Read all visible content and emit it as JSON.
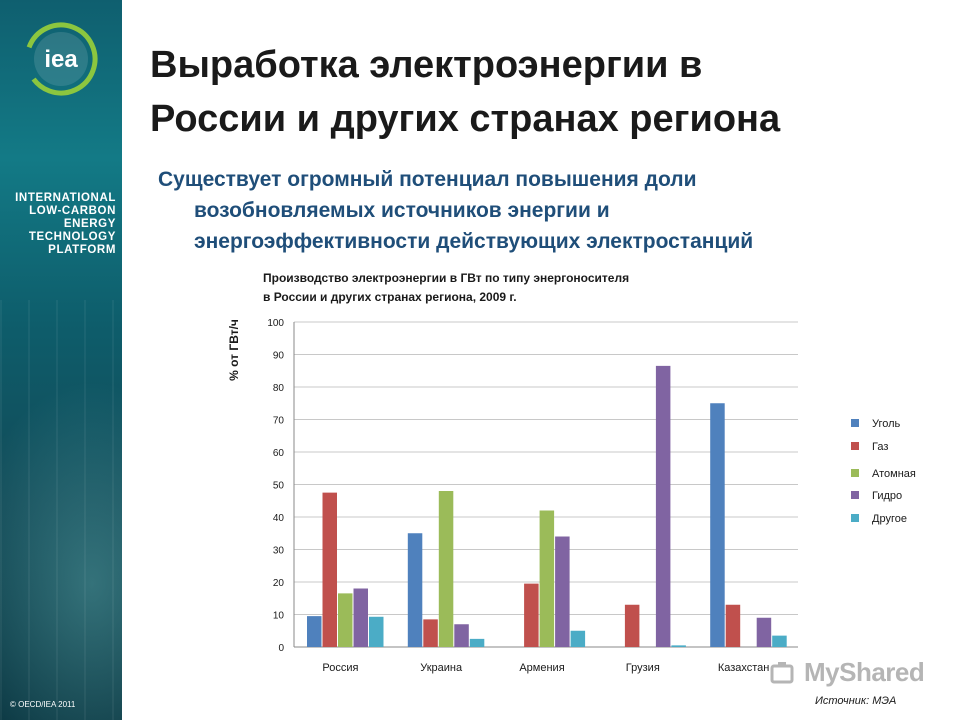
{
  "sidebar": {
    "logo_text": "iea",
    "platform_lines": [
      "INTERNATIONAL",
      "LOW-CARBON",
      "ENERGY",
      "TECHNOLOGY",
      "PLATFORM"
    ],
    "copyright": "© OECD/IEA 2011"
  },
  "slide": {
    "title_line1": "Выработка электроэнергии в",
    "title_line2": "России и других странах региона",
    "subtitle_line1": "Существует огромный потенциал повышения доли",
    "subtitle_line2": "возобновляемых источников энергии и",
    "subtitle_line3": "энергоэффективности действующих электростанций",
    "source": "Источник: МЭА",
    "watermark": "MyShared"
  },
  "colors": {
    "sidebar": "#0f5f6f",
    "subtitle": "#1f4e79",
    "coal": "#4f81bd",
    "gas": "#c0504d",
    "nuclear": "#9bbb59",
    "hydro": "#8064a2",
    "other": "#4bacc6"
  },
  "chart_data": {
    "type": "bar",
    "title_line1": "Производство электроэнергии в ГВт по типу энергоносителя",
    "title_line2": "в России и других странах региона, 2009 г.",
    "ylabel": "% от ГВт/ч",
    "xlabel": "",
    "ylim": [
      0,
      100
    ],
    "yticks": [
      0,
      10,
      20,
      30,
      40,
      50,
      60,
      70,
      80,
      90,
      100
    ],
    "grid": true,
    "legend_position": "right",
    "categories": [
      "Россия",
      "Украина",
      "Армения",
      "Грузия",
      "Казахстан"
    ],
    "series": [
      {
        "name": "Уголь",
        "color": "#4f81bd",
        "values": [
          9.5,
          35,
          0,
          0,
          75
        ]
      },
      {
        "name": "Газ",
        "color": "#c0504d",
        "values": [
          47.5,
          8.5,
          19.5,
          13,
          13
        ]
      },
      {
        "name": "Атомная",
        "color": "#9bbb59",
        "values": [
          16.5,
          48,
          42,
          0,
          0
        ]
      },
      {
        "name": "Гидро",
        "color": "#8064a2",
        "values": [
          18,
          7,
          34,
          86.5,
          9
        ]
      },
      {
        "name": "Другое",
        "color": "#4bacc6",
        "values": [
          9.3,
          2.5,
          5,
          0.5,
          3.5
        ]
      }
    ]
  }
}
